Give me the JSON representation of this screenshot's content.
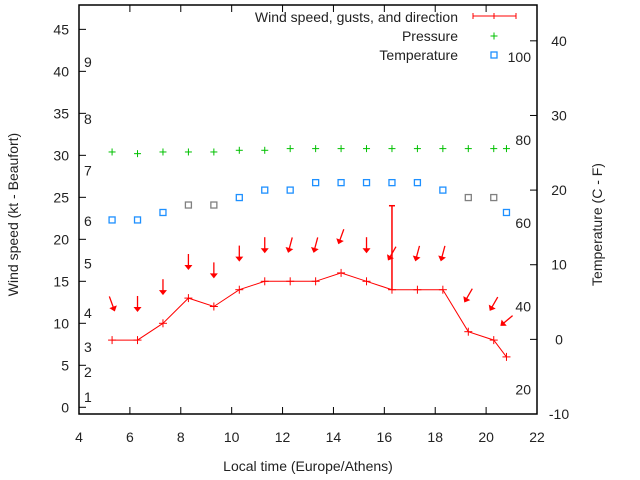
{
  "chart_data": {
    "type": "line",
    "title": "",
    "xlabel": "Local time (Europe/Athens)",
    "ylabel": "Wind speed (kt - Beaufort)",
    "y2label": "Temperature (C - F)",
    "xlim": [
      4,
      22
    ],
    "ylim": [
      -0.8,
      47.9
    ],
    "y2lim": [
      -10,
      44.8
    ],
    "grid": false,
    "legend_position": "top-right",
    "x_ticks": [
      "4",
      "6",
      "8",
      "10",
      "12",
      "14",
      "16",
      "18",
      "20",
      "22"
    ],
    "x_tick_values": [
      4,
      6,
      8,
      10,
      12,
      14,
      16,
      18,
      20,
      22
    ],
    "y_ticks": [
      "0",
      "5",
      "10",
      "15",
      "20",
      "25",
      "30",
      "35",
      "40",
      "45"
    ],
    "y_tick_values": [
      0,
      5,
      10,
      15,
      20,
      25,
      30,
      35,
      40,
      45
    ],
    "y2_ticks": [
      "-10",
      "0",
      "10",
      "20",
      "30",
      "40"
    ],
    "y2_tick_values": [
      -10,
      0,
      10,
      20,
      30,
      40
    ],
    "beaufort_labels": [
      {
        "label": "1",
        "kt": 1.2
      },
      {
        "label": "2",
        "kt": 4.2
      },
      {
        "label": "3",
        "kt": 7.2
      },
      {
        "label": "4",
        "kt": 11.2
      },
      {
        "label": "5",
        "kt": 17.1
      },
      {
        "label": "6",
        "kt": 22.2
      },
      {
        "label": "7",
        "kt": 28.2
      },
      {
        "label": "8",
        "kt": 34.3
      },
      {
        "label": "9",
        "kt": 41.1
      }
    ],
    "fahrenheit_labels": [
      {
        "label": "20",
        "c": -6.7
      },
      {
        "label": "40",
        "c": 4.4
      },
      {
        "label": "60",
        "c": 15.6
      },
      {
        "label": "80",
        "c": 26.7
      },
      {
        "label": "100",
        "c": 37.8
      }
    ],
    "x": [
      5.3,
      6.3,
      7.3,
      8.3,
      9.3,
      10.3,
      11.3,
      12.3,
      13.3,
      14.3,
      15.3,
      16.3,
      17.3,
      18.3,
      19.3,
      20.3,
      20.8
    ],
    "series": [
      {
        "name": "Wind speed, gusts, and direction",
        "color": "#ff0000",
        "axis": "y",
        "values": [
          8,
          8,
          10,
          13,
          12,
          14,
          15,
          15,
          15,
          16,
          15,
          14,
          14,
          14,
          9,
          8,
          6
        ],
        "gusts": [
          null,
          null,
          null,
          null,
          null,
          null,
          null,
          null,
          null,
          null,
          null,
          24,
          null,
          null,
          null,
          null,
          null
        ],
        "direction_deg": [
          20,
          0,
          0,
          0,
          0,
          0,
          0,
          345,
          345,
          340,
          0,
          330,
          345,
          345,
          330,
          330,
          310
        ]
      },
      {
        "name": "Pressure",
        "color": "#00c000",
        "axis": "y",
        "values": [
          30.4,
          30.2,
          30.4,
          30.4,
          30.4,
          30.6,
          30.6,
          30.8,
          30.8,
          30.8,
          30.8,
          30.8,
          30.8,
          30.8,
          30.8,
          30.8,
          30.8
        ]
      },
      {
        "name": "Temperature",
        "color": "#1e90ff",
        "axis": "y2",
        "values": [
          16,
          16,
          17,
          18,
          18,
          19,
          20,
          20,
          21,
          21,
          21,
          21,
          21,
          20,
          19,
          19,
          17
        ],
        "estimated": [
          false,
          false,
          false,
          true,
          true,
          false,
          false,
          false,
          false,
          false,
          false,
          false,
          false,
          false,
          true,
          true,
          false
        ],
        "estimated_color": "#808080"
      }
    ]
  }
}
